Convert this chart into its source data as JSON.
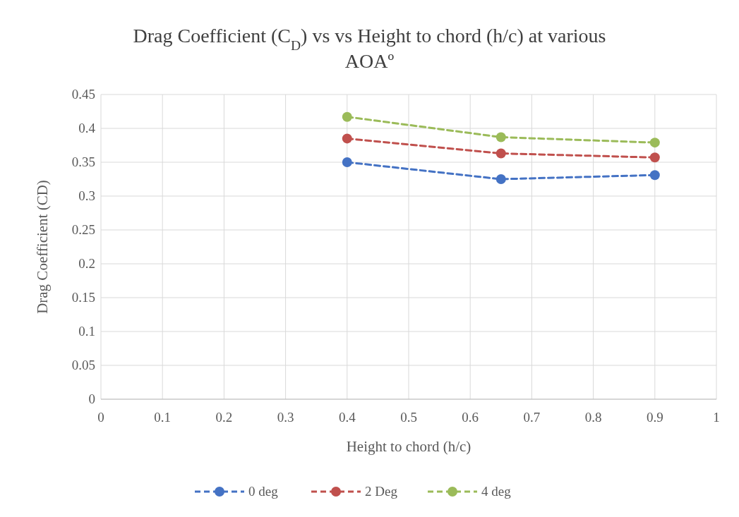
{
  "chart_data": {
    "type": "line",
    "title": "Drag Coefficient (C$_{D}$) vs vs Height to chord (h/c) at various AOAº",
    "xlabel": "Height to chord (h/c)",
    "ylabel": "Drag Coefficient (CD)",
    "x": [
      0.4,
      0.65,
      0.9
    ],
    "series": [
      {
        "name": "0 deg",
        "color": "#4472c4",
        "values": [
          0.35,
          0.325,
          0.331
        ]
      },
      {
        "name": "2 Deg",
        "color": "#c0504d",
        "values": [
          0.385,
          0.363,
          0.357
        ]
      },
      {
        "name": "4 deg",
        "color": "#9bbb59",
        "values": [
          0.417,
          0.387,
          0.379
        ]
      }
    ],
    "xlim": [
      0,
      1
    ],
    "xticks": [
      0,
      0.1,
      0.2,
      0.3,
      0.4,
      0.5,
      0.6,
      0.7,
      0.8,
      0.9,
      1
    ],
    "ylim": [
      0,
      0.45
    ],
    "yticks": [
      0,
      0.05,
      0.1,
      0.15,
      0.2,
      0.25,
      0.3,
      0.35,
      0.4,
      0.45
    ],
    "grid": true,
    "legend": "bottom",
    "marker": "circle",
    "line_style": "dashed"
  }
}
